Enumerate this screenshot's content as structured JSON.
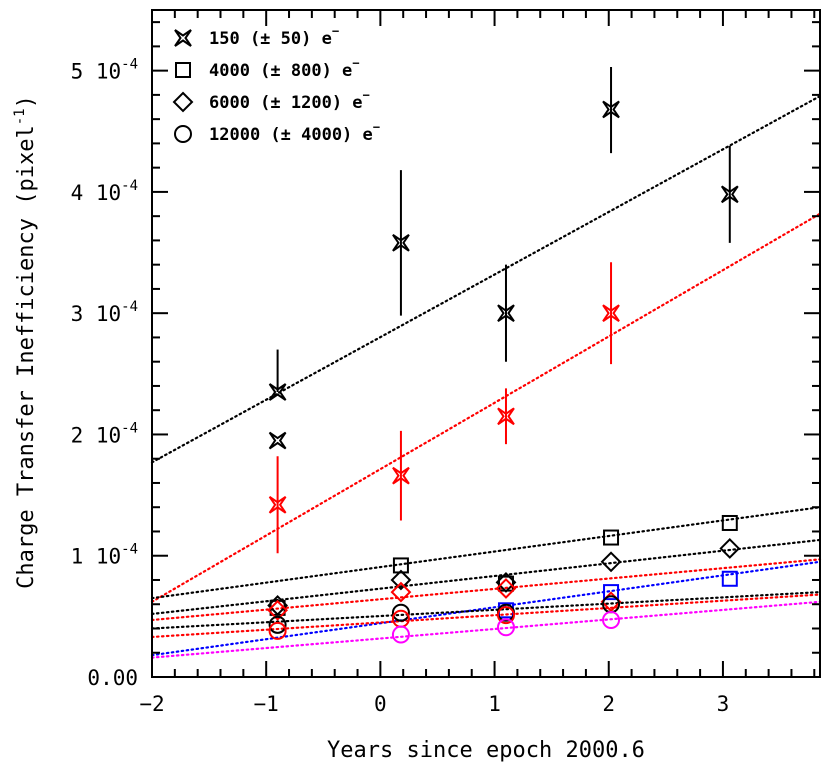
{
  "chart_data": {
    "type": "scatter",
    "xlabel": "Years since epoch 2000.6",
    "ylabel": "Charge Transfer Inefficiency (pixel",
    "ylabel_superscript": "-1",
    "ylabel_close": ")",
    "xlim": [
      -2,
      3.85
    ],
    "ylim": [
      0,
      5.5
    ],
    "y_unit_exponent": "-4",
    "x_ticks": [
      {
        "value": -2,
        "label": "−2"
      },
      {
        "value": -1,
        "label": "−1"
      },
      {
        "value": 0,
        "label": "0"
      },
      {
        "value": 1,
        "label": "1"
      },
      {
        "value": 2,
        "label": "2"
      },
      {
        "value": 3,
        "label": "3"
      }
    ],
    "y_ticks": [
      {
        "value": 0,
        "label": "0.00",
        "exp": ""
      },
      {
        "value": 1,
        "label": "1 10",
        "exp": "-4"
      },
      {
        "value": 2,
        "label": "2 10",
        "exp": "-4"
      },
      {
        "value": 3,
        "label": "3 10",
        "exp": "-4"
      },
      {
        "value": 4,
        "label": "4 10",
        "exp": "-4"
      },
      {
        "value": 5,
        "label": "5 10",
        "exp": "-4"
      }
    ],
    "legend": [
      {
        "marker": "star",
        "text": "150 (± 50) e",
        "sup": "−"
      },
      {
        "marker": "square",
        "text": "4000 (± 800) e",
        "sup": "−"
      },
      {
        "marker": "diamond",
        "text": "6000 (± 1200) e",
        "sup": "−"
      },
      {
        "marker": "circle",
        "text": "12000 (± 4000) e",
        "sup": "−"
      }
    ],
    "legend_placement": "top-left",
    "colors": {
      "black": "#000000",
      "red": "#ff0000",
      "blue": "#0000ff",
      "magenta": "#ff00ff"
    },
    "series": [
      {
        "marker": "star",
        "color": "black",
        "points": [
          {
            "x": -0.9,
            "y": 2.35,
            "err": [
              2.35,
              2.7
            ]
          },
          {
            "x": -0.9,
            "y": 1.95,
            "err": null
          },
          {
            "x": 0.18,
            "y": 3.58,
            "err": [
              2.98,
              4.18
            ]
          },
          {
            "x": 1.1,
            "y": 3.0,
            "err": [
              2.6,
              3.4
            ]
          },
          {
            "x": 2.02,
            "y": 4.68,
            "err": [
              4.32,
              5.03
            ]
          },
          {
            "x": 3.06,
            "y": 3.98,
            "err": [
              3.58,
              4.38
            ]
          }
        ]
      },
      {
        "marker": "star",
        "color": "red",
        "points": [
          {
            "x": -0.9,
            "y": 1.42,
            "err": [
              1.02,
              1.82
            ]
          },
          {
            "x": 0.18,
            "y": 1.66,
            "err": [
              1.29,
              2.03
            ]
          },
          {
            "x": 1.1,
            "y": 2.15,
            "err": [
              1.92,
              2.38
            ]
          },
          {
            "x": 2.02,
            "y": 3.0,
            "err": [
              2.58,
              3.42
            ]
          }
        ]
      },
      {
        "marker": "square",
        "color": "black",
        "points": [
          {
            "x": -0.9,
            "y": 0.57
          },
          {
            "x": 0.18,
            "y": 0.92
          },
          {
            "x": 1.1,
            "y": 0.77
          },
          {
            "x": 2.02,
            "y": 1.15
          },
          {
            "x": 3.06,
            "y": 1.27
          }
        ]
      },
      {
        "marker": "diamond",
        "color": "black",
        "points": [
          {
            "x": -0.9,
            "y": 0.59
          },
          {
            "x": 0.18,
            "y": 0.8
          },
          {
            "x": 1.1,
            "y": 0.78
          },
          {
            "x": 2.02,
            "y": 0.95
          },
          {
            "x": 3.06,
            "y": 1.06
          }
        ]
      },
      {
        "marker": "diamond",
        "color": "red",
        "points": [
          {
            "x": -0.9,
            "y": 0.55
          },
          {
            "x": 0.18,
            "y": 0.7
          },
          {
            "x": 1.1,
            "y": 0.73
          },
          {
            "x": 2.02,
            "y": 0.62
          }
        ]
      },
      {
        "marker": "square",
        "color": "blue",
        "points": [
          {
            "x": 1.1,
            "y": 0.55
          },
          {
            "x": 2.02,
            "y": 0.7
          },
          {
            "x": 3.06,
            "y": 0.81
          }
        ]
      },
      {
        "marker": "circle",
        "color": "black",
        "points": [
          {
            "x": -0.9,
            "y": 0.43
          },
          {
            "x": 0.18,
            "y": 0.53
          },
          {
            "x": 1.1,
            "y": 0.53
          },
          {
            "x": 2.02,
            "y": 0.6
          }
        ]
      },
      {
        "marker": "circle",
        "color": "red",
        "points": [
          {
            "x": -0.9,
            "y": 0.38
          },
          {
            "x": 0.18,
            "y": 0.48
          },
          {
            "x": 1.1,
            "y": 0.51
          }
        ]
      },
      {
        "marker": "circle",
        "color": "magenta",
        "points": [
          {
            "x": 0.18,
            "y": 0.35
          },
          {
            "x": 1.1,
            "y": 0.41
          },
          {
            "x": 2.02,
            "y": 0.47
          }
        ]
      }
    ],
    "trend_lines": [
      {
        "color": "black",
        "y_start": 1.77,
        "y_end": 4.79
      },
      {
        "color": "red",
        "y_start": 0.62,
        "y_end": 3.82
      },
      {
        "color": "black",
        "y_start": 0.65,
        "y_end": 1.4
      },
      {
        "color": "black",
        "y_start": 0.52,
        "y_end": 1.13
      },
      {
        "color": "red",
        "y_start": 0.47,
        "y_end": 0.97
      },
      {
        "color": "blue",
        "y_start": 0.18,
        "y_end": 0.95
      },
      {
        "color": "black",
        "y_start": 0.4,
        "y_end": 0.7
      },
      {
        "color": "red",
        "y_start": 0.33,
        "y_end": 0.68
      },
      {
        "color": "magenta",
        "y_start": 0.16,
        "y_end": 0.62
      }
    ]
  }
}
